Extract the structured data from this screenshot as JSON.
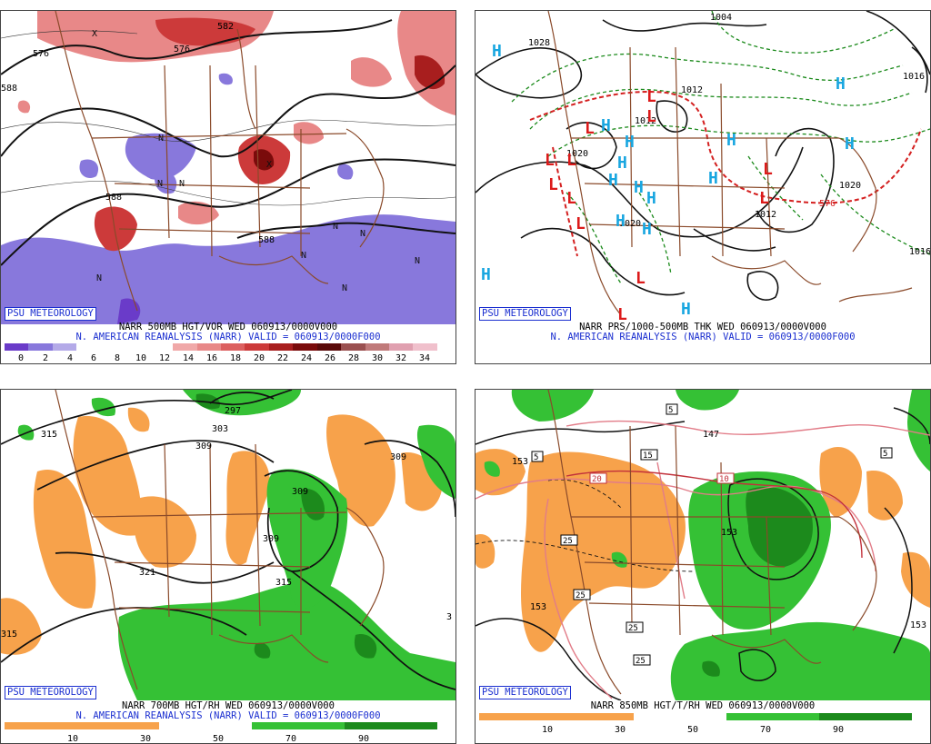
{
  "badge": "PSU METEOROLOGY",
  "panels": {
    "p1": {
      "line1": "NARR 500MB HGT/VOR WED 060913/0000V000",
      "line2": "N. AMERICAN REANALYSIS (NARR) VALID = 060913/0000F000",
      "ticks": [
        "0",
        "2",
        "4",
        "6",
        "8",
        "10",
        "12",
        "14",
        "16",
        "18",
        "20",
        "22",
        "24",
        "26",
        "28",
        "30",
        "32",
        "34"
      ],
      "contours": [
        "576",
        "582",
        "576",
        "588",
        "588",
        "588"
      ],
      "symbols": [
        "N",
        "N",
        "N",
        "N",
        "N",
        "N",
        "N",
        "N",
        "N",
        "X",
        "X"
      ]
    },
    "p2": {
      "line1": "NARR PRS/1000-500MB THK WED 060913/0000V000",
      "line2": "N. AMERICAN REANALYSIS (NARR) VALID = 060913/0000F000",
      "contours": [
        "1028",
        "1004",
        "1012",
        "1012",
        "1020",
        "1020",
        "1012",
        "1016",
        "1020",
        "1016",
        "576"
      ],
      "symbols": [
        "H",
        "H",
        "H",
        "H",
        "H",
        "H",
        "H",
        "H",
        "H",
        "H",
        "H",
        "H",
        "H",
        "L",
        "L",
        "L",
        "L",
        "L",
        "L",
        "L",
        "L",
        "L",
        "L"
      ]
    },
    "p3": {
      "line1": "NARR 700MB HGT/RH WED 060913/0000V000",
      "line2": "N. AMERICAN REANALYSIS (NARR) VALID = 060913/0000F000",
      "ticks": [
        "10",
        "30",
        "50",
        "70",
        "90"
      ],
      "contours": [
        "315",
        "303",
        "309",
        "309",
        "309",
        "309",
        "321",
        "315",
        "315",
        "297",
        "3"
      ]
    },
    "p4": {
      "line1": "NARR 850MB HGT/T/RH WED 060913/0000V000",
      "ticks": [
        "10",
        "30",
        "50",
        "70",
        "90"
      ],
      "contours": [
        "153",
        "153",
        "153",
        "153",
        "147"
      ],
      "boxes": [
        "5",
        "15",
        "10",
        "20",
        "25",
        "25",
        "25",
        "25",
        "5",
        "5"
      ]
    }
  }
}
